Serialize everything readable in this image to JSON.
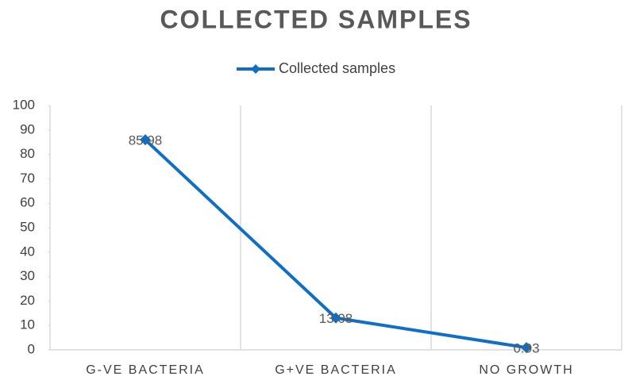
{
  "chart_data": {
    "type": "line",
    "title": "COLLECTED SAMPLES",
    "categories": [
      "G-VE BACTERIA",
      "G+VE BACTERIA",
      "NO GROWTH"
    ],
    "series": [
      {
        "name": "Collected samples",
        "color": "#0f6fc6",
        "values": [
          85.98,
          13.08,
          0.93
        ]
      }
    ],
    "ylim": [
      0,
      100
    ],
    "yticks": [
      0,
      10,
      20,
      30,
      40,
      50,
      60,
      70,
      80,
      90,
      100
    ],
    "legend": "top",
    "data_labels": true
  }
}
